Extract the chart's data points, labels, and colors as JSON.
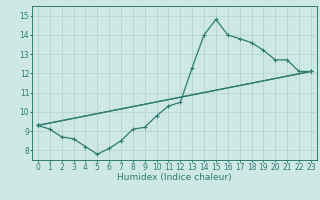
{
  "xlabel": "Humidex (Indice chaleur)",
  "bg_color": "#cde8e5",
  "grid_color": "#b8d4d2",
  "line_color": "#2e7d6e",
  "xlim": [
    -0.5,
    23.5
  ],
  "ylim": [
    7.5,
    15.5
  ],
  "xticks": [
    0,
    1,
    2,
    3,
    4,
    5,
    6,
    7,
    8,
    9,
    10,
    11,
    12,
    13,
    14,
    15,
    16,
    17,
    18,
    19,
    20,
    21,
    22,
    23
  ],
  "yticks": [
    8,
    9,
    10,
    11,
    12,
    13,
    14,
    15
  ],
  "line1_x": [
    0,
    1,
    2,
    3,
    4,
    5,
    6,
    7,
    8,
    9,
    10,
    11,
    12,
    13,
    14,
    15,
    16,
    17,
    18,
    19,
    20,
    21,
    22,
    23
  ],
  "line1_y": [
    9.3,
    9.1,
    8.7,
    8.6,
    8.2,
    7.8,
    8.1,
    8.5,
    9.1,
    9.2,
    9.8,
    10.3,
    10.5,
    12.3,
    14.0,
    14.8,
    14.0,
    13.8,
    13.6,
    13.2,
    12.7,
    12.7,
    12.1,
    12.1
  ],
  "line2_x": [
    0,
    23
  ],
  "line2_y": [
    9.3,
    12.1
  ],
  "line3_x": [
    0,
    23
  ],
  "line3_y": [
    9.3,
    12.1
  ]
}
